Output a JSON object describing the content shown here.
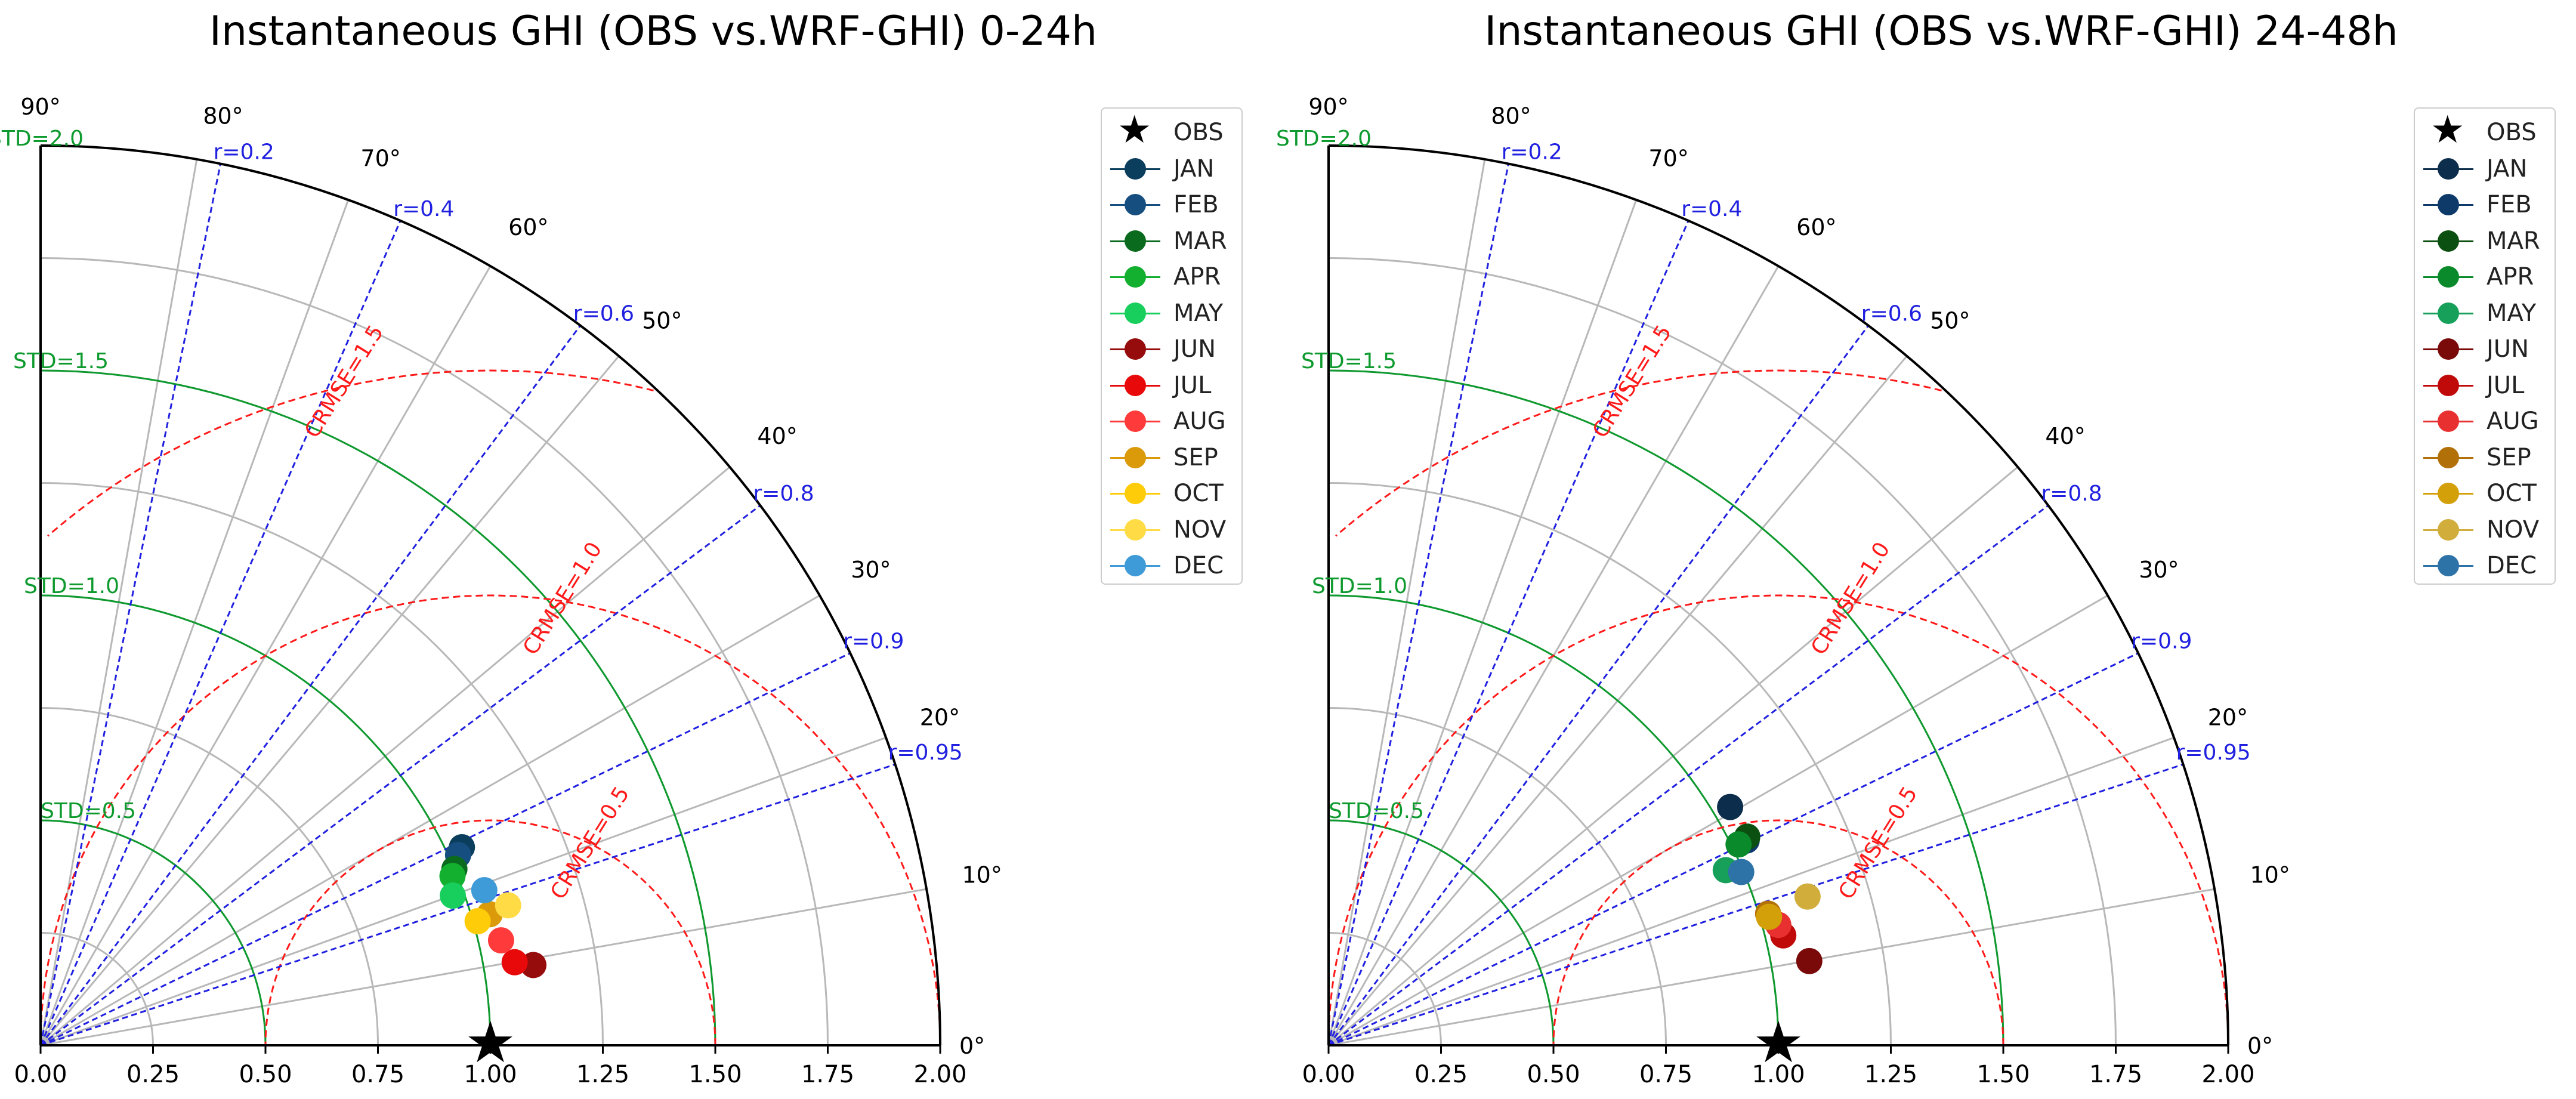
{
  "chart_data": [
    {
      "type": "taylor",
      "title": "Instantaneous GHI (OBS vs.WRF-GHI) 0-24h",
      "xlim": [
        0.0,
        2.0
      ],
      "x_ticks": [
        "0.00",
        "0.25",
        "0.50",
        "0.75",
        "1.00",
        "1.25",
        "1.50",
        "1.75",
        "2.00"
      ],
      "angle_labels": [
        "0°",
        "10°",
        "20°",
        "30°",
        "40°",
        "50°",
        "60°",
        "70°",
        "80°",
        "90°"
      ],
      "std_labels": [
        "STD=0.5",
        "STD=1.0",
        "STD=1.5",
        "STD=2.0"
      ],
      "corr_labels": [
        "r=0.2",
        "r=0.4",
        "r=0.6",
        "r=0.8",
        "r=0.9",
        "r=0.95"
      ],
      "crmse_labels": [
        "CRMSE=0.5",
        "CRMSE=1.0",
        "CRMSE=1.5"
      ],
      "reference": {
        "name": "OBS",
        "std": 1.0,
        "corr": 1.0
      },
      "points": [
        {
          "name": "JAN",
          "std": 1.035,
          "corr": 0.905,
          "color": "#0b3d5c"
        },
        {
          "name": "FEB",
          "std": 1.02,
          "corr": 0.91,
          "color": "#164e80"
        },
        {
          "name": "MAR",
          "std": 1.0,
          "corr": 0.92,
          "color": "#0a6b1f"
        },
        {
          "name": "APR",
          "std": 0.99,
          "corr": 0.925,
          "color": "#13b030"
        },
        {
          "name": "MAY",
          "std": 0.975,
          "corr": 0.94,
          "color": "#18cf5e"
        },
        {
          "name": "JUN",
          "std": 1.11,
          "corr": 0.987,
          "color": "#960c0c"
        },
        {
          "name": "JUL",
          "std": 1.07,
          "corr": 0.985,
          "color": "#e80a0a"
        },
        {
          "name": "AUG",
          "std": 1.05,
          "corr": 0.975,
          "color": "#ff3a3a"
        },
        {
          "name": "SEP",
          "std": 1.04,
          "corr": 0.96,
          "color": "#db9a0a"
        },
        {
          "name": "OCT",
          "std": 1.01,
          "corr": 0.962,
          "color": "#ffcc0a"
        },
        {
          "name": "NOV",
          "std": 1.085,
          "corr": 0.958,
          "color": "#ffdc46"
        },
        {
          "name": "DEC",
          "std": 1.045,
          "corr": 0.944,
          "color": "#3f9ad8"
        }
      ]
    },
    {
      "type": "taylor",
      "title": "Instantaneous GHI (OBS vs.WRF-GHI) 24-48h",
      "xlim": [
        0.0,
        2.0
      ],
      "x_ticks": [
        "0.00",
        "0.25",
        "0.50",
        "0.75",
        "1.00",
        "1.25",
        "1.50",
        "1.75",
        "2.00"
      ],
      "angle_labels": [
        "0°",
        "10°",
        "20°",
        "30°",
        "40°",
        "50°",
        "60°",
        "70°",
        "80°",
        "90°"
      ],
      "std_labels": [
        "STD=0.5",
        "STD=1.0",
        "STD=1.5",
        "STD=2.0"
      ],
      "corr_labels": [
        "r=0.2",
        "r=0.4",
        "r=0.6",
        "r=0.8",
        "r=0.9",
        "r=0.95"
      ],
      "crmse_labels": [
        "CRMSE=0.5",
        "CRMSE=1.0",
        "CRMSE=1.5"
      ],
      "reference": {
        "name": "OBS",
        "std": 1.0,
        "corr": 1.0
      },
      "points": [
        {
          "name": "JAN",
          "std": 1.038,
          "corr": 0.86,
          "color": "#0c2d4b"
        },
        {
          "name": "FEB",
          "std": 1.035,
          "corr": 0.898,
          "color": "#0e3a6a"
        },
        {
          "name": "MAR",
          "std": 1.04,
          "corr": 0.895,
          "color": "#0b5010"
        },
        {
          "name": "APR",
          "std": 1.015,
          "corr": 0.898,
          "color": "#0a8a2a"
        },
        {
          "name": "MAY",
          "std": 0.965,
          "corr": 0.915,
          "color": "#16a05a"
        },
        {
          "name": "JUN",
          "std": 1.085,
          "corr": 0.985,
          "color": "#7a0a0a"
        },
        {
          "name": "JUL",
          "std": 1.04,
          "corr": 0.972,
          "color": "#c00a0a"
        },
        {
          "name": "AUG",
          "std": 1.035,
          "corr": 0.966,
          "color": "#e83030"
        },
        {
          "name": "SEP",
          "std": 1.02,
          "corr": 0.958,
          "color": "#b27008"
        },
        {
          "name": "OCT",
          "std": 1.02,
          "corr": 0.96,
          "color": "#d4a00a"
        },
        {
          "name": "NOV",
          "std": 1.115,
          "corr": 0.955,
          "color": "#d1ad3c"
        },
        {
          "name": "DEC",
          "std": 0.995,
          "corr": 0.922,
          "color": "#2e73a8"
        }
      ]
    }
  ]
}
